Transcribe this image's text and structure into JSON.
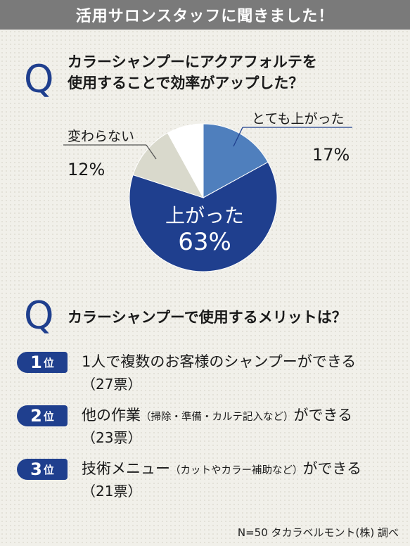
{
  "header": {
    "title": "活用サロンスタッフに聞きました！"
  },
  "q_mark": "Q",
  "question1": {
    "line1": "カラーシャンプーにアクアフォルテを",
    "line2": "使用することで効率がアップした？"
  },
  "chart_data": {
    "type": "pie",
    "slices": [
      {
        "label": "とても上がった",
        "value": 17,
        "display": "17%",
        "color": "#4f7fbd"
      },
      {
        "label": "上がった",
        "value": 63,
        "display": "63%",
        "color": "#1f3f8e"
      },
      {
        "label": "変わらない",
        "value": 12,
        "display": "12%",
        "color": "#d9d9cc"
      },
      {
        "label": "",
        "value": 8,
        "display": "",
        "color": "#ffffff"
      }
    ],
    "start_angle_deg": 0,
    "direction": "clockwise"
  },
  "question2": {
    "text": "カラーシャンプーで使用するメリットは？"
  },
  "ranking": [
    {
      "rank": "1",
      "unit": "位",
      "title_main": "1人で複数のお客様のシャンプーができる",
      "title_note": "",
      "title_tail": "",
      "count": "（27票）"
    },
    {
      "rank": "2",
      "unit": "位",
      "title_main": "他の作業",
      "title_note": "（掃除・準備・カルテ記入など）",
      "title_tail": "ができる",
      "count": "（23票）"
    },
    {
      "rank": "3",
      "unit": "位",
      "title_main": "技術メニュー",
      "title_note": "（カットやカラー補助など）",
      "title_tail": "ができる",
      "count": "（21票）"
    }
  ],
  "source": "N=50 タカラベルモント(株) 調べ"
}
